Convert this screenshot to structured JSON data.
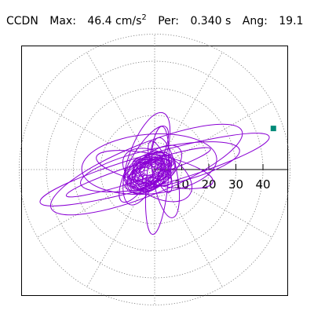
{
  "header": {
    "station": "CCDN",
    "max_label": "Max:",
    "max_value": "46.4",
    "max_unit_base": "cm/s",
    "max_unit_exp": "2",
    "per_label": "Per:",
    "per_value": "0.340",
    "per_unit": "s",
    "ang_label": "Ang:",
    "ang_value": "19.1"
  },
  "chart_data": {
    "type": "scatter",
    "title": "",
    "polar": true,
    "grid": true,
    "grid_style": "dotted",
    "radial_ticks": [
      10,
      20,
      30,
      40
    ],
    "radial_tick_labels": [
      "10",
      "20",
      "30",
      "40"
    ],
    "rmax": 50,
    "spokes_deg": [
      0,
      30,
      60,
      90,
      120,
      150,
      180,
      210,
      240,
      270,
      300,
      330
    ],
    "series": [
      {
        "kind": "trajectory",
        "color": "#8a00d4",
        "loops": [
          {
            "a": 44.0,
            "b": 6.0,
            "rot": 16,
            "cx": 0,
            "cy": 0
          },
          {
            "a": 38.0,
            "b": 9.5,
            "rot": 22,
            "cx": -3,
            "cy": 0
          },
          {
            "a": 30.0,
            "b": 7.0,
            "rot": 12,
            "cx": 2,
            "cy": 1
          },
          {
            "a": 25.0,
            "b": 11.0,
            "rot": 5,
            "cx": -2,
            "cy": 2
          },
          {
            "a": 22.0,
            "b": 5.5,
            "rot": -12,
            "cx": 0,
            "cy": 0
          },
          {
            "a": 18.0,
            "b": 6.5,
            "rot": 70,
            "cx": -3,
            "cy": 4
          },
          {
            "a": 20.0,
            "b": 4.0,
            "rot": 85,
            "cx": 1,
            "cy": -4
          },
          {
            "a": 15.0,
            "b": 4.5,
            "rot": 100,
            "cx": 4,
            "cy": -3
          },
          {
            "a": 16.0,
            "b": 5.0,
            "rot": 60,
            "cx": -4,
            "cy": 2
          },
          {
            "a": 12.0,
            "b": 6.0,
            "rot": 40,
            "cx": 0,
            "cy": 0
          },
          {
            "a": 10.0,
            "b": 3.0,
            "rot": 110,
            "cx": 2,
            "cy": 1
          },
          {
            "a": 8.0,
            "b": 3.5,
            "rot": 150,
            "cx": -1,
            "cy": -1
          },
          {
            "a": 6.0,
            "b": 2.5,
            "rot": 20,
            "cx": 0,
            "cy": 1
          },
          {
            "a": 14.0,
            "b": 8.0,
            "rot": -30,
            "cx": 1,
            "cy": -2
          },
          {
            "a": 28.0,
            "b": 3.0,
            "rot": 18,
            "cx": -6,
            "cy": -1
          }
        ]
      }
    ],
    "peak_marker": {
      "r": 46.4,
      "angle_deg": 19.1,
      "color": "#008a78"
    }
  }
}
